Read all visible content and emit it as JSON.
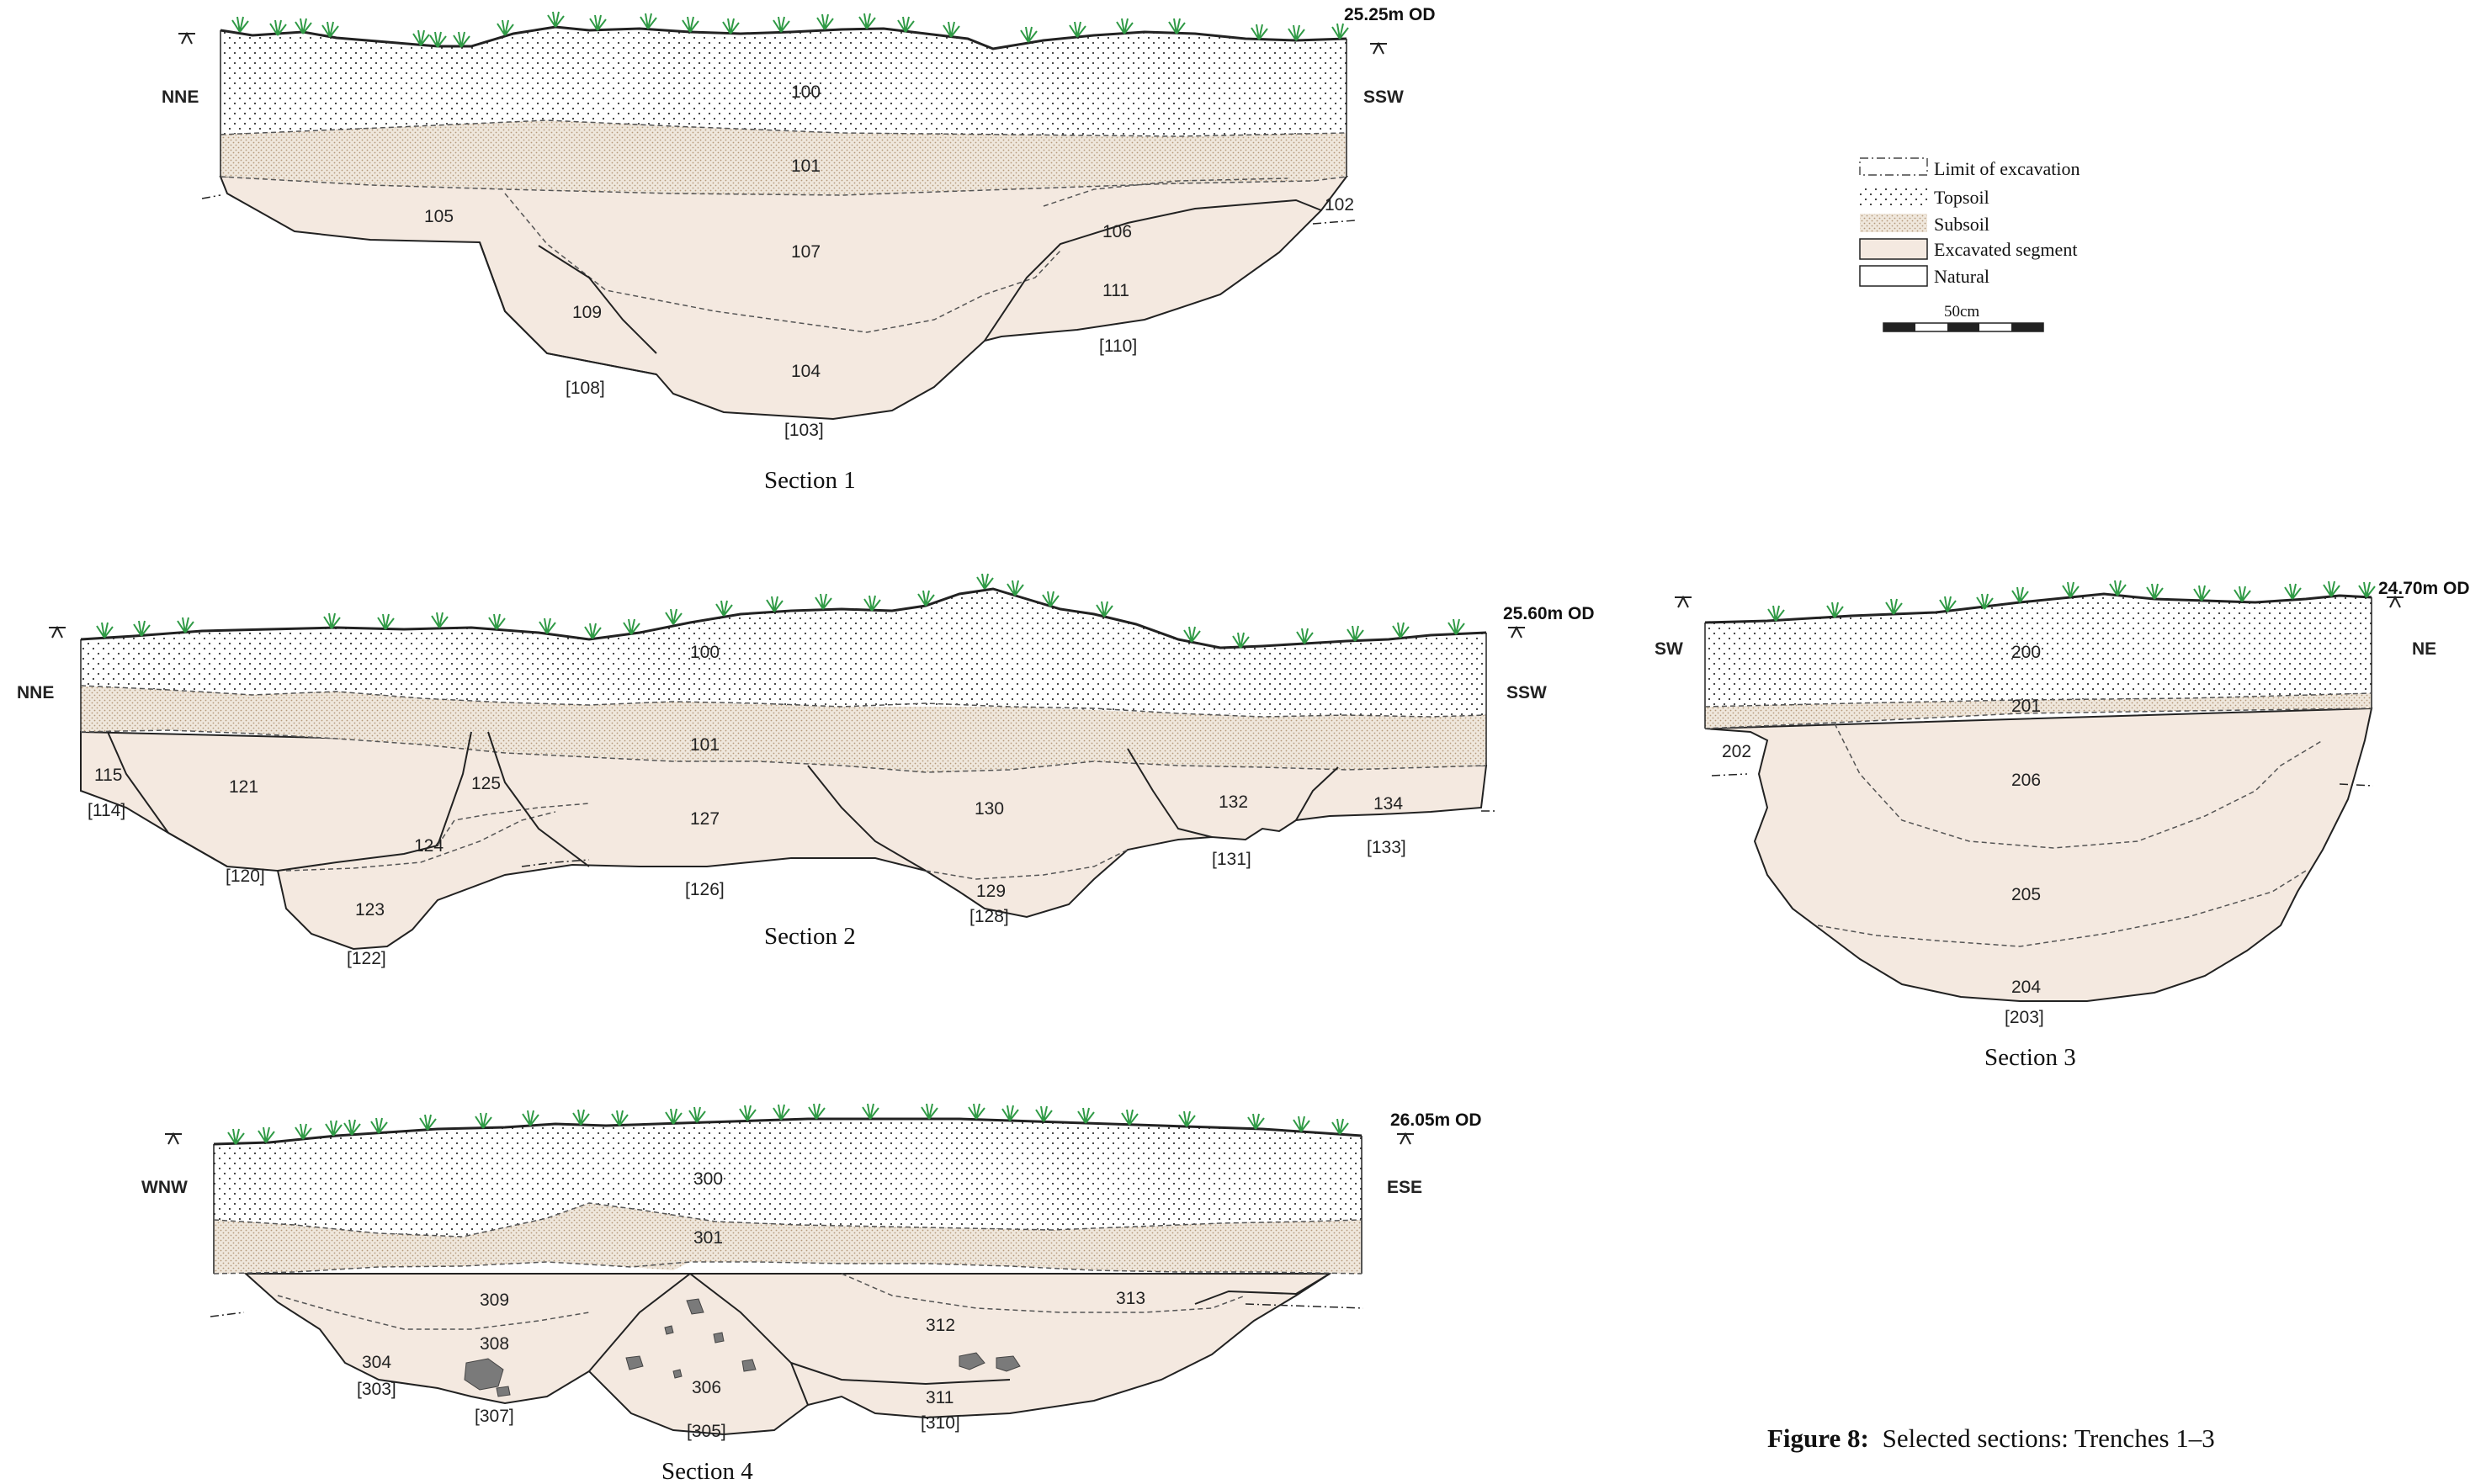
{
  "figure_caption": {
    "prefix": "Figure 8:",
    "text": "Selected sections: Trenches 1–3"
  },
  "legend": {
    "items": [
      "Limit of excavation",
      "Topsoil",
      "Subsoil",
      "Excavated segment",
      "Natural"
    ],
    "scale_label": "50cm"
  },
  "colors": {
    "fill": "#f4e9e0",
    "subsoil_dot": "#b59a7a",
    "topsoil_dot": "#333333",
    "stone": "#7a7a7a",
    "plant": "#2f9a45",
    "line": "#222222"
  },
  "sections": [
    {
      "caption": "Section 1",
      "od": "25.25m OD",
      "left_dir": "NNE",
      "right_dir": "SSW",
      "labels": [
        "100",
        "101",
        "102",
        "105",
        "106",
        "107",
        "109",
        "111",
        "104",
        "[108]",
        "[110]",
        "[103]"
      ]
    },
    {
      "caption": "Section 2",
      "od": "25.60m OD",
      "left_dir": "NNE",
      "right_dir": "SSW",
      "labels": [
        "100",
        "101",
        "115",
        "[114]",
        "121",
        "125",
        "124",
        "[120]",
        "123",
        "[122]",
        "127",
        "[126]",
        "130",
        "129",
        "[128]",
        "132",
        "[131]",
        "134",
        "[133]"
      ]
    },
    {
      "caption": "Section 3",
      "od": "24.70m OD",
      "left_dir": "SW",
      "right_dir": "NE",
      "labels": [
        "200",
        "201",
        "202",
        "206",
        "205",
        "204",
        "[203]"
      ]
    },
    {
      "caption": "Section 4",
      "od": "26.05m OD",
      "left_dir": "WNW",
      "right_dir": "ESE",
      "labels": [
        "300",
        "301",
        "309",
        "308",
        "304",
        "[303]",
        "[307]",
        "306",
        "[305]",
        "312",
        "313",
        "311",
        "[310]"
      ]
    }
  ]
}
